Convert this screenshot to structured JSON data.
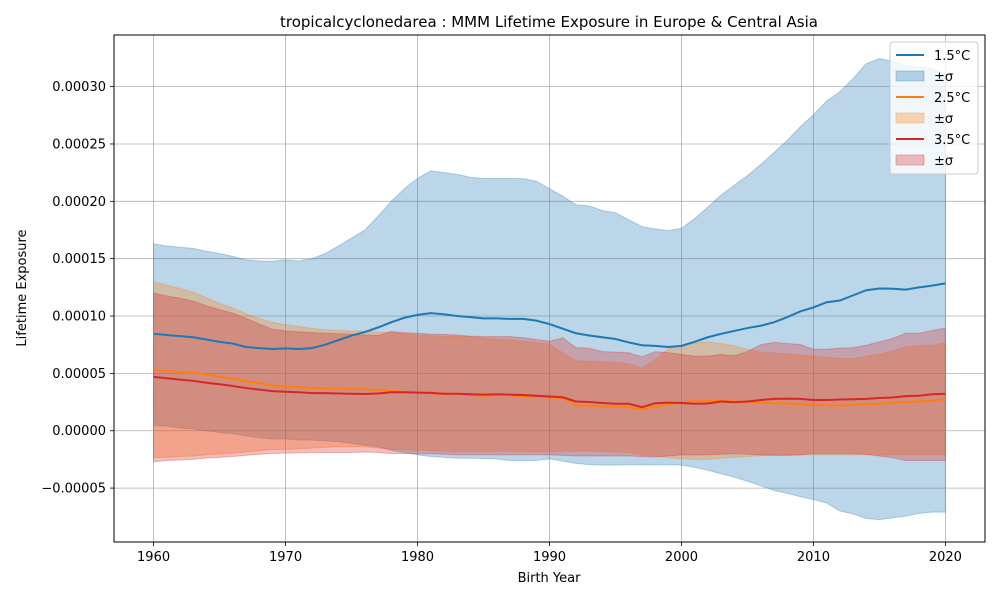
{
  "chart_data": {
    "type": "line",
    "title": "tropicalcyclonedarea : MMM Lifetime Exposure in Europe & Central Asia",
    "xlabel": "Birth Year",
    "ylabel": "Lifetime Exposure",
    "xlim": [
      1957,
      2023
    ],
    "ylim": [
      -9.7e-05,
      0.000345
    ],
    "xticks": [
      1960,
      1970,
      1980,
      1990,
      2000,
      2010,
      2020
    ],
    "xtick_labels": [
      "1960",
      "1970",
      "1980",
      "1990",
      "2000",
      "2010",
      "2020"
    ],
    "yticks": [
      -5e-05,
      0.0,
      5e-05,
      0.0001,
      0.00015,
      0.0002,
      0.00025,
      0.0003
    ],
    "ytick_labels": [
      "−0.00005",
      "0.00000",
      "0.00005",
      "0.00010",
      "0.00015",
      "0.00020",
      "0.00025",
      "0.00030"
    ],
    "grid": true,
    "legend_position": "top-right",
    "x": [
      1960,
      1961,
      1962,
      1963,
      1964,
      1965,
      1966,
      1967,
      1968,
      1969,
      1970,
      1971,
      1972,
      1973,
      1974,
      1975,
      1976,
      1977,
      1978,
      1979,
      1980,
      1981,
      1982,
      1983,
      1984,
      1985,
      1986,
      1987,
      1988,
      1989,
      1990,
      1991,
      1992,
      1993,
      1994,
      1995,
      1996,
      1997,
      1998,
      1999,
      2000,
      2001,
      2002,
      2003,
      2004,
      2005,
      2006,
      2007,
      2008,
      2009,
      2010,
      2011,
      2012,
      2013,
      2014,
      2015,
      2016,
      2017,
      2018,
      2019,
      2020
    ],
    "series": [
      {
        "name": "1.5°C",
        "band_name": "±σ",
        "color": "#1f77b4",
        "mean": [
          8.45e-05,
          8.35e-05,
          8.25e-05,
          8.15e-05,
          7.95e-05,
          7.75e-05,
          7.6e-05,
          7.3e-05,
          7.2e-05,
          7.12e-05,
          7.18e-05,
          7.12e-05,
          7.2e-05,
          7.5e-05,
          7.9e-05,
          8.3e-05,
          8.6e-05,
          9e-05,
          9.45e-05,
          9.85e-05,
          0.000101,
          0.0001025,
          0.0001015,
          0.0001,
          9.9e-05,
          9.8e-05,
          9.8e-05,
          9.75e-05,
          9.75e-05,
          9.6e-05,
          9.3e-05,
          8.9e-05,
          8.5e-05,
          8.3e-05,
          8.15e-05,
          8e-05,
          7.7e-05,
          7.45e-05,
          7.4e-05,
          7.3e-05,
          7.4e-05,
          7.75e-05,
          8.15e-05,
          8.45e-05,
          8.7e-05,
          8.95e-05,
          9.15e-05,
          9.45e-05,
          9.9e-05,
          0.000104,
          0.0001075,
          0.000112,
          0.0001135,
          0.000118,
          0.0001225,
          0.000124,
          0.0001238,
          0.000123,
          0.000125,
          0.0001265,
          0.0001285
        ],
        "upper": [
          0.000163,
          0.000161,
          0.00016,
          0.000159,
          0.0001565,
          0.0001545,
          0.000152,
          0.000149,
          0.000148,
          0.0001478,
          0.000149,
          0.000148,
          0.00015,
          0.0001545,
          0.000161,
          0.000168,
          0.000175,
          0.000187,
          0.0002,
          0.000211,
          0.00022,
          0.0002265,
          0.000225,
          0.0002235,
          0.000221,
          0.00022,
          0.00022,
          0.00022,
          0.0002198,
          0.0002175,
          0.000211,
          0.0002045,
          0.000197,
          0.000196,
          0.000192,
          0.00019,
          0.000184,
          0.000178,
          0.000176,
          0.0001745,
          0.0001765,
          0.000185,
          0.000195,
          0.0002055,
          0.000214,
          0.0002225,
          0.000232,
          0.0002425,
          0.000253,
          0.000265,
          0.0002755,
          0.0002875,
          0.0002955,
          0.000307,
          0.00032,
          0.0003245,
          0.000322,
          0.000318,
          0.000317,
          0.000316,
          0.00031
        ],
        "lower": [
          4.5e-06,
          4e-06,
          2.5e-06,
          1.5e-06,
          0.0,
          -1.5e-06,
          -2.5e-06,
          -4.5e-06,
          -6e-06,
          -7.2e-06,
          -7.2e-06,
          -8e-06,
          -8.2e-06,
          -8.8e-06,
          -9.5e-06,
          -1.1e-05,
          -1.25e-05,
          -1.4e-05,
          -1.7e-05,
          -1.9e-05,
          -2.1e-05,
          -2.25e-05,
          -2.32e-05,
          -2.4e-05,
          -2.4e-05,
          -2.42e-05,
          -2.45e-05,
          -2.6e-05,
          -2.6e-05,
          -2.6e-05,
          -2.45e-05,
          -2.65e-05,
          -2.85e-05,
          -2.95e-05,
          -3e-05,
          -3e-05,
          -2.95e-05,
          -2.98e-05,
          -2.98e-05,
          -2.95e-05,
          -3e-05,
          -3.2e-05,
          -3.45e-05,
          -3.75e-05,
          -4.05e-05,
          -4.4e-05,
          -4.8e-05,
          -5.2e-05,
          -5.45e-05,
          -5.75e-05,
          -6e-05,
          -6.3e-05,
          -7e-05,
          -7.25e-05,
          -7.65e-05,
          -7.75e-05,
          -7.6e-05,
          -7.45e-05,
          -7.2e-05,
          -7.1e-05,
          -7.1e-05
        ]
      },
      {
        "name": "2.5°C",
        "band_name": "±σ",
        "color": "#ff7f0e",
        "mean": [
          5.35e-05,
          5.2e-05,
          5.12e-05,
          5.05e-05,
          4.9e-05,
          4.7e-05,
          4.55e-05,
          4.3e-05,
          4.15e-05,
          3.98e-05,
          3.85e-05,
          3.78e-05,
          3.72e-05,
          3.68e-05,
          3.68e-05,
          3.65e-05,
          3.62e-05,
          3.55e-05,
          3.45e-05,
          3.4e-05,
          3.35e-05,
          3.25e-05,
          3.2e-05,
          3.2e-05,
          3.1e-05,
          3.05e-05,
          3.1e-05,
          3.1e-05,
          3e-05,
          2.95e-05,
          2.9e-05,
          2.85e-05,
          2.22e-05,
          2.2e-05,
          2.1e-05,
          2.1e-05,
          2.05e-05,
          1.85e-05,
          2.1e-05,
          2.3e-05,
          2.45e-05,
          2.6e-05,
          2.6e-05,
          2.6e-05,
          2.55e-05,
          2.5e-05,
          2.45e-05,
          2.4e-05,
          2.38e-05,
          2.32e-05,
          2.25e-05,
          2.22e-05,
          2.2e-05,
          2.25e-05,
          2.3e-05,
          2.35e-05,
          2.45e-05,
          2.5e-05,
          2.55e-05,
          2.62e-05,
          2.75e-05
        ],
        "upper": [
          0.00013,
          0.000127,
          0.000124,
          0.000121,
          0.000116,
          0.000111,
          0.000107,
          0.000102,
          9.8e-05,
          9.45e-05,
          9.25e-05,
          9.1e-05,
          8.92e-05,
          8.82e-05,
          8.75e-05,
          8.7e-05,
          8.68e-05,
          8.6e-05,
          8.55e-05,
          8.45e-05,
          8.35e-05,
          8.28e-05,
          8.22e-05,
          8.25e-05,
          8.2e-05,
          8.08e-05,
          7.95e-05,
          7.9e-05,
          7.8e-05,
          7.68e-05,
          7.55e-05,
          6.8e-05,
          6.1e-05,
          6.05e-05,
          6e-05,
          5.95e-05,
          5.85e-05,
          5.45e-05,
          6.2e-05,
          7.15e-05,
          7.45e-05,
          7.65e-05,
          7.75e-05,
          7.6e-05,
          7.4e-05,
          7.1e-05,
          6.85e-05,
          6.78e-05,
          6.7e-05,
          6.62e-05,
          6.48e-05,
          6.38e-05,
          6.3e-05,
          6.3e-05,
          6.48e-05,
          6.68e-05,
          6.95e-05,
          7.3e-05,
          7.4e-05,
          7.45e-05,
          7.65e-05
        ],
        "lower": [
          -2.35e-05,
          -2.3e-05,
          -2.25e-05,
          -2.2e-05,
          -2.1e-05,
          -2.05e-05,
          -1.95e-05,
          -1.85e-05,
          -1.75e-05,
          -1.65e-05,
          -1.62e-05,
          -1.58e-05,
          -1.52e-05,
          -1.45e-05,
          -1.4e-05,
          -1.4e-05,
          -1.4e-05,
          -1.5e-05,
          -1.6e-05,
          -1.68e-05,
          -1.7e-05,
          -1.72e-05,
          -1.78e-05,
          -1.82e-05,
          -1.82e-05,
          -1.8e-05,
          -1.78e-05,
          -1.78e-05,
          -1.82e-05,
          -1.85e-05,
          -1.82e-05,
          -1.8e-05,
          -1.78e-05,
          -1.78e-05,
          -1.8e-05,
          -1.85e-05,
          -1.9e-05,
          -2.1e-05,
          -2.2e-05,
          -2.35e-05,
          -2.45e-05,
          -2.5e-05,
          -2.5e-05,
          -2.4e-05,
          -2.32e-05,
          -2.25e-05,
          -2.18e-05,
          -2.12e-05,
          -2.1e-05,
          -2.1e-05,
          -2.1e-05,
          -2.1e-05,
          -2.1e-05,
          -2.1e-05,
          -2.1e-05,
          -2.1e-05,
          -2.1e-05,
          -2.1e-05,
          -2.1e-05,
          -2.1e-05,
          -2.1e-05
        ]
      },
      {
        "name": "3.5°C",
        "band_name": "±σ",
        "color": "#d62728",
        "mean": [
          4.7e-05,
          4.58e-05,
          4.46e-05,
          4.35e-05,
          4.18e-05,
          4.05e-05,
          3.9e-05,
          3.72e-05,
          3.58e-05,
          3.45e-05,
          3.4e-05,
          3.35e-05,
          3.28e-05,
          3.28e-05,
          3.25e-05,
          3.22e-05,
          3.2e-05,
          3.25e-05,
          3.35e-05,
          3.35e-05,
          3.32e-05,
          3.3e-05,
          3.22e-05,
          3.22e-05,
          3.18e-05,
          3.15e-05,
          3.18e-05,
          3.15e-05,
          3.12e-05,
          3.05e-05,
          2.98e-05,
          2.92e-05,
          2.55e-05,
          2.5e-05,
          2.42e-05,
          2.35e-05,
          2.35e-05,
          2.05e-05,
          2.4e-05,
          2.45e-05,
          2.42e-05,
          2.35e-05,
          2.38e-05,
          2.55e-05,
          2.48e-05,
          2.55e-05,
          2.68e-05,
          2.78e-05,
          2.8e-05,
          2.78e-05,
          2.68e-05,
          2.68e-05,
          2.72e-05,
          2.75e-05,
          2.78e-05,
          2.85e-05,
          2.9e-05,
          3.02e-05,
          3.05e-05,
          3.18e-05,
          3.22e-05
        ],
        "upper": [
          0.00012,
          0.0001175,
          0.0001155,
          0.000113,
          0.000109,
          0.0001055,
          0.0001025,
          9.8e-05,
          9.3e-05,
          8.85e-05,
          8.7e-05,
          8.62e-05,
          8.55e-05,
          8.5e-05,
          8.45e-05,
          8.4e-05,
          8.35e-05,
          8.3e-05,
          8.65e-05,
          8.55e-05,
          8.5e-05,
          8.42e-05,
          8.4e-05,
          8.35e-05,
          8.25e-05,
          8.2e-05,
          8.2e-05,
          8.2e-05,
          8.12e-05,
          7.95e-05,
          7.8e-05,
          8.1e-05,
          7.25e-05,
          7.2e-05,
          6.9e-05,
          6.85e-05,
          6.8e-05,
          6.45e-05,
          6.9e-05,
          6.8e-05,
          6.65e-05,
          6.5e-05,
          6.5e-05,
          6.65e-05,
          6.55e-05,
          6.9e-05,
          7.5e-05,
          7.7e-05,
          7.6e-05,
          7.52e-05,
          7.1e-05,
          7.1e-05,
          7.2e-05,
          7.25e-05,
          7.45e-05,
          7.75e-05,
          8.05e-05,
          8.5e-05,
          8.5e-05,
          8.75e-05,
          8.95e-05
        ],
        "lower": [
          -2.7e-05,
          -2.6e-05,
          -2.55e-05,
          -2.5e-05,
          -2.38e-05,
          -2.32e-05,
          -2.25e-05,
          -2.15e-05,
          -2.05e-05,
          -1.98e-05,
          -1.95e-05,
          -1.92e-05,
          -1.9e-05,
          -1.9e-05,
          -1.9e-05,
          -1.9e-05,
          -1.85e-05,
          -1.9e-05,
          -1.98e-05,
          -1.98e-05,
          -2e-05,
          -2.02e-05,
          -2.05e-05,
          -2.1e-05,
          -2.1e-05,
          -2.08e-05,
          -2.1e-05,
          -2.1e-05,
          -2.1e-05,
          -2.1e-05,
          -2.1e-05,
          -2.15e-05,
          -2.2e-05,
          -2.2e-05,
          -2.2e-05,
          -2.2e-05,
          -2.2e-05,
          -2.25e-05,
          -2.28e-05,
          -2.2e-05,
          -2.1e-05,
          -2.1e-05,
          -2.1e-05,
          -2.05e-05,
          -2e-05,
          -2.05e-05,
          -2.1e-05,
          -2.15e-05,
          -2.15e-05,
          -2.1e-05,
          -1.98e-05,
          -2e-05,
          -1.98e-05,
          -2e-05,
          -2.05e-05,
          -2.2e-05,
          -2.35e-05,
          -2.6e-05,
          -2.6e-05,
          -2.6e-05,
          -2.6e-05
        ]
      }
    ]
  }
}
